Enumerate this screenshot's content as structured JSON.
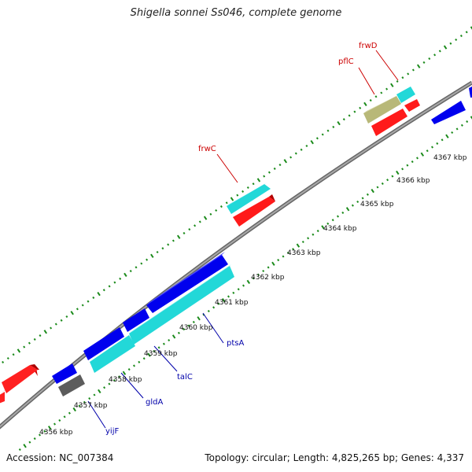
{
  "title": "Shigella sonnei Ss046, complete genome",
  "accession": "Accession: NC_007384",
  "summary": "Topology: circular; Length: 4,825,265 bp; Genes: 4,337",
  "colors": {
    "backbone": "#808080",
    "tick_dot": "#1a8a1a",
    "forward_gene": "#ff0000",
    "cds_blue": "#0000ee",
    "cds_cyan": "#22dddd",
    "cds_olive": "#bbbb77",
    "cds_gray": "#666666",
    "label_red": "#cc0000",
    "label_blue": "#0000aa"
  },
  "scale_labels": [
    {
      "id": "4356",
      "text": "4356 kbp"
    },
    {
      "id": "4357",
      "text": "4357 kbp"
    },
    {
      "id": "4358",
      "text": "4358 kbp"
    },
    {
      "id": "4359",
      "text": "4359 kbp"
    },
    {
      "id": "4360",
      "text": "4360 kbp"
    },
    {
      "id": "4361",
      "text": "4361 kbp"
    },
    {
      "id": "4362",
      "text": "4362 kbp"
    },
    {
      "id": "4363",
      "text": "4363 kbp"
    },
    {
      "id": "4364",
      "text": "4364 kbp"
    },
    {
      "id": "4365",
      "text": "4365 kbp"
    },
    {
      "id": "4366",
      "text": "4366 kbp"
    },
    {
      "id": "4367",
      "text": "4367 kbp"
    }
  ],
  "gene_labels": [
    {
      "id": "frwD",
      "text": "frwD",
      "strand": "forward"
    },
    {
      "id": "pflC",
      "text": "pflC",
      "strand": "forward"
    },
    {
      "id": "frwC",
      "text": "frwC",
      "strand": "forward"
    },
    {
      "id": "ptsA",
      "text": "ptsA",
      "strand": "reverse"
    },
    {
      "id": "talC",
      "text": "talC",
      "strand": "reverse"
    },
    {
      "id": "gldA",
      "text": "gldA",
      "strand": "reverse"
    },
    {
      "id": "yijF",
      "text": "yijF",
      "strand": "reverse"
    }
  ]
}
